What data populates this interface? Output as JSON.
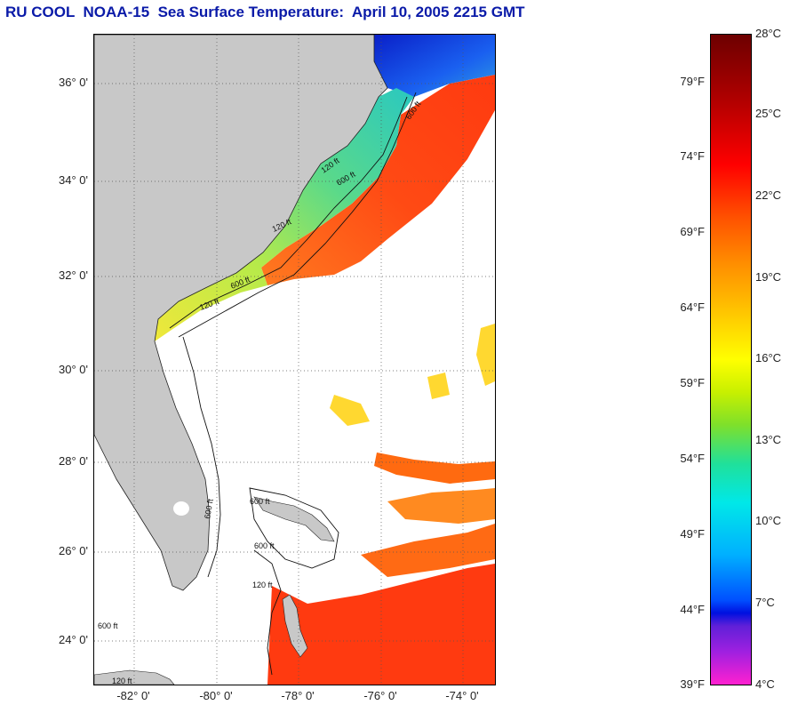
{
  "title": "RU COOL  NOAA-15  Sea Surface Temperature:  April 10, 2005 2215 GMT",
  "map": {
    "lat_labels": [
      "36° 0'",
      "34° 0'",
      "32° 0'",
      "30° 0'",
      "28° 0'",
      "26° 0'",
      "24° 0'"
    ],
    "lon_labels": [
      "-82° 0'",
      "-80° 0'",
      "-78° 0'",
      "-76° 0'",
      "-74° 0'"
    ],
    "contour_labels": [
      "120 ft",
      "600 ft",
      "120 ft",
      "600 ft",
      "120 ft",
      "600 ft",
      "600 ft",
      "600 ft",
      "120 ft",
      "600 ft",
      "120 ft",
      "600 ft"
    ],
    "colors": {
      "land": "#c8c8c8",
      "gulf_stream": "#ff4a10",
      "shelf_warm": "#f2e633",
      "shelf_cool": "#58d68e",
      "cold_water": "#1030e0",
      "grid": "#555555"
    }
  },
  "colorbar": {
    "celsius": [
      "28°C",
      "25°C",
      "22°C",
      "19°C",
      "16°C",
      "13°C",
      "10°C",
      "7°C",
      "4°C"
    ],
    "fahrenheit": [
      "79°F",
      "74°F",
      "69°F",
      "64°F",
      "59°F",
      "54°F",
      "49°F",
      "44°F",
      "39°F"
    ]
  }
}
